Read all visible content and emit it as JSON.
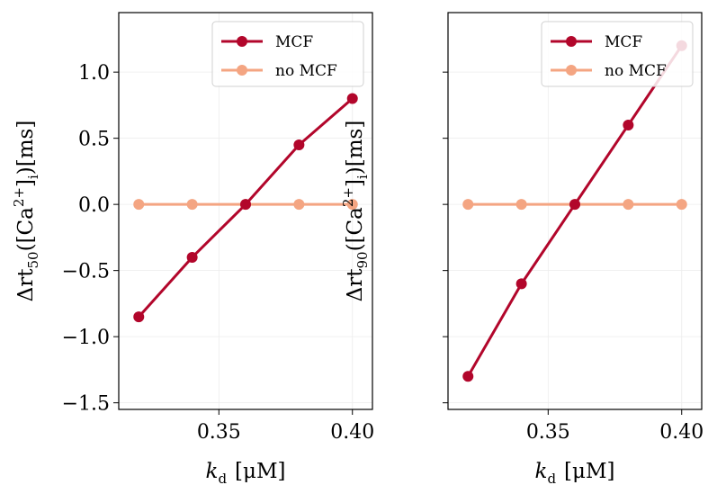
{
  "chart_data": [
    {
      "type": "line",
      "panel": "left",
      "xlabel_main": "k",
      "xlabel_sub": "d",
      "xlabel_unit": "[μM]",
      "ylabel_prefix": "Δrt",
      "ylabel_sub": "50",
      "ylabel_mid": "([Ca",
      "ylabel_sup": "2+",
      "ylabel_close": "]",
      "ylabel_sub2": "i",
      "ylabel_suffix": ")[ms]",
      "x": [
        0.32,
        0.34,
        0.36,
        0.38,
        0.4
      ],
      "xlim": [
        0.3125,
        0.4075
      ],
      "ylim": [
        -1.55,
        1.45
      ],
      "xticks": [
        0.35,
        0.4
      ],
      "xtick_labels": [
        "0.35",
        "0.40"
      ],
      "yticks": [
        -1.5,
        -1.0,
        -0.5,
        0.0,
        0.5,
        1.0
      ],
      "ytick_labels": [
        "−1.5",
        "−1.0",
        "−0.5",
        "0.0",
        "0.5",
        "1.0"
      ],
      "show_ytick_labels": true,
      "grid": true,
      "legend_position": "top-right",
      "series": [
        {
          "name": "MCF",
          "color": "#b2062b",
          "values": [
            -0.85,
            -0.4,
            0.0,
            0.45,
            0.8
          ]
        },
        {
          "name": "no MCF",
          "color": "#f4a582",
          "values": [
            0.0,
            0.0,
            0.0,
            0.0,
            0.0
          ]
        }
      ]
    },
    {
      "type": "line",
      "panel": "right",
      "xlabel_main": "k",
      "xlabel_sub": "d",
      "xlabel_unit": "[μM]",
      "ylabel_prefix": "Δrt",
      "ylabel_sub": "90",
      "ylabel_mid": "([Ca",
      "ylabel_sup": "2+",
      "ylabel_close": "]",
      "ylabel_sub2": "i",
      "ylabel_suffix": ")[ms]",
      "x": [
        0.32,
        0.34,
        0.36,
        0.38,
        0.4
      ],
      "xlim": [
        0.3125,
        0.4075
      ],
      "ylim": [
        -1.55,
        1.45
      ],
      "xticks": [
        0.35,
        0.4
      ],
      "xtick_labels": [
        "0.35",
        "0.40"
      ],
      "yticks": [
        -1.5,
        -1.0,
        -0.5,
        0.0,
        0.5,
        1.0
      ],
      "ytick_labels": [],
      "show_ytick_labels": false,
      "grid": true,
      "legend_position": "top-right",
      "series": [
        {
          "name": "MCF",
          "color": "#b2062b",
          "values": [
            -1.3,
            -0.6,
            0.0,
            0.6,
            1.2
          ]
        },
        {
          "name": "no MCF",
          "color": "#f4a582",
          "values": [
            0.0,
            0.0,
            0.0,
            0.0,
            0.0
          ]
        }
      ]
    }
  ]
}
